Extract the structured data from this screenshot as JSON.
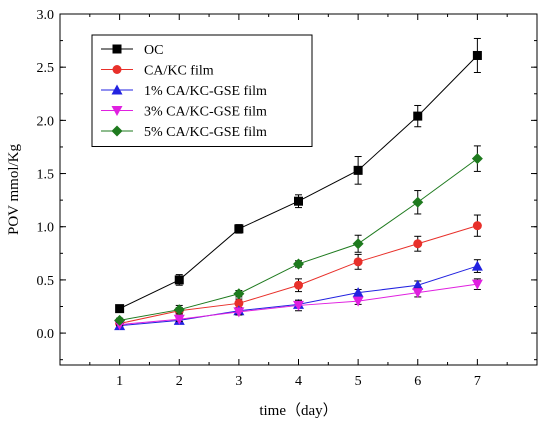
{
  "chart_data": {
    "type": "line",
    "title": "",
    "xlabel": "time（day）",
    "ylabel": "POV mmol/Kg",
    "x": [
      1,
      2,
      3,
      4,
      5,
      6,
      7
    ],
    "xlim": [
      0,
      8
    ],
    "ylim": [
      -0.3,
      3.0
    ],
    "x_ticks": [
      "1",
      "2",
      "3",
      "4",
      "5",
      "6",
      "7"
    ],
    "y_ticks": [
      "0.0",
      "0.5",
      "1.0",
      "1.5",
      "2.0",
      "2.5",
      "3.0"
    ],
    "grid": false,
    "legend_position": "top-left",
    "error_bars": true,
    "series": [
      {
        "name": "OC",
        "color": "#000000",
        "marker": "square",
        "values": [
          0.23,
          0.5,
          0.98,
          1.24,
          1.53,
          2.04,
          2.61
        ],
        "errors": [
          0.02,
          0.05,
          0.04,
          0.06,
          0.13,
          0.1,
          0.16
        ]
      },
      {
        "name": "CA/KC film",
        "color": "#e8302a",
        "marker": "circle",
        "values": [
          0.09,
          0.21,
          0.28,
          0.45,
          0.67,
          0.84,
          1.01
        ],
        "errors": [
          0.02,
          0.03,
          0.04,
          0.06,
          0.07,
          0.07,
          0.1
        ]
      },
      {
        "name": "1% CA/KC-GSE film",
        "color": "#2222e0",
        "marker": "triangle-up",
        "values": [
          0.07,
          0.12,
          0.21,
          0.27,
          0.38,
          0.45,
          0.63
        ],
        "errors": [
          0.01,
          0.02,
          0.02,
          0.03,
          0.03,
          0.04,
          0.06
        ]
      },
      {
        "name": "3% CA/KC-GSE film",
        "color": "#e020e0",
        "marker": "triangle-down",
        "values": [
          0.08,
          0.13,
          0.2,
          0.26,
          0.3,
          0.38,
          0.46
        ],
        "errors": [
          0.01,
          0.02,
          0.03,
          0.05,
          0.03,
          0.04,
          0.05
        ]
      },
      {
        "name": "5% CA/KC-GSE film",
        "color": "#1e7a1e",
        "marker": "diamond",
        "values": [
          0.12,
          0.22,
          0.37,
          0.65,
          0.84,
          1.23,
          1.64
        ],
        "errors": [
          0.02,
          0.04,
          0.03,
          0.03,
          0.08,
          0.11,
          0.12
        ]
      }
    ]
  }
}
